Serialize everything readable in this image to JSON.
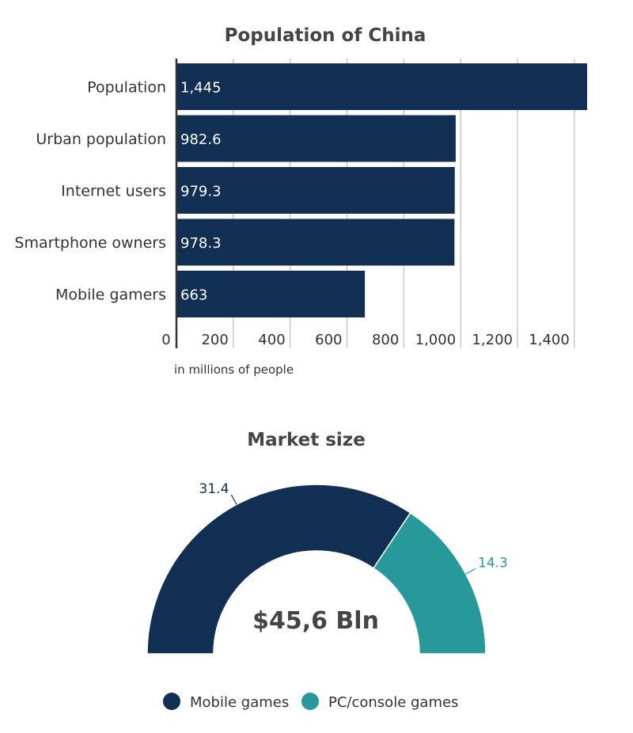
{
  "bar_chart": {
    "title": "Population of China",
    "axis_note": "in millions of people",
    "bar_color": "#102f53"
  },
  "chart_data": [
    {
      "type": "bar",
      "orientation": "horizontal",
      "title": "Population of China",
      "xlabel": "in millions of people",
      "ylabel": "",
      "categories": [
        "Population",
        "Urban population",
        "Internet users",
        "Smartphone owners",
        "Mobile gamers"
      ],
      "values": [
        1445,
        982.6,
        979.3,
        978.3,
        663
      ],
      "value_labels": [
        "1,445",
        "982.6",
        "979.3",
        "978.3",
        "663"
      ],
      "xlim": [
        0,
        1445
      ],
      "x_ticks": [
        0,
        200,
        400,
        600,
        800,
        1000,
        1200,
        1400
      ],
      "x_tick_labels": [
        "0",
        "200",
        "400",
        "600",
        "800",
        "1,000",
        "1,200",
        "1,400"
      ],
      "grid": true,
      "color": "#102f53"
    },
    {
      "type": "pie",
      "style": "half-donut",
      "title": "Market size",
      "center_label": "$45,6 Bln",
      "categories": [
        "Mobile games",
        "PC/console games"
      ],
      "values": [
        31.4,
        14.3
      ],
      "value_labels": [
        "31.4",
        "14.3"
      ],
      "colors": [
        "#102f53",
        "#27999a"
      ],
      "legend": "bottom"
    }
  ],
  "donut_chart": {
    "title": "Market size",
    "center_label": "$45,6 Bln",
    "legend": [
      {
        "label": "Mobile games",
        "color": "#102f53"
      },
      {
        "label": "PC/console games",
        "color": "#27999a"
      }
    ]
  }
}
